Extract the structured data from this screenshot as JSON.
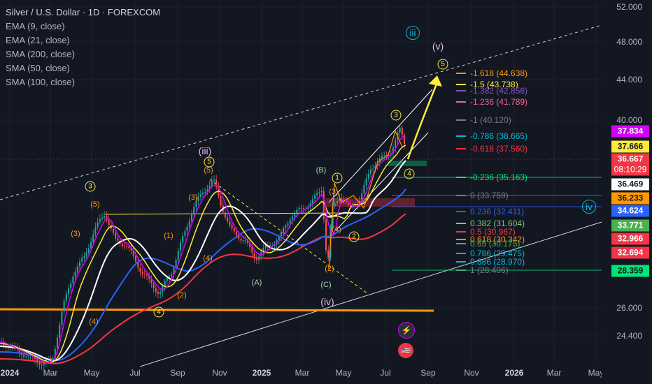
{
  "chart": {
    "title": "Silver / U.S. Dollar · 1D · FOREXCOM",
    "indicators": [
      "EMA (9, close)",
      "EMA (21, close)",
      "SMA (200, close)",
      "SMA (50, close)",
      "SMA (100, close)"
    ]
  },
  "price_axis": {
    "ticks": [
      "52.000",
      "48.000",
      "44.000",
      "40.000",
      "26.000",
      "24.400"
    ],
    "tags": [
      {
        "value": "37.834",
        "bg": "#d500f9",
        "fg": "#ffffff"
      },
      {
        "value": "37.666",
        "bg": "#ffeb3b",
        "fg": "#131722"
      },
      {
        "value": "36.667",
        "bg": "#f23645",
        "fg": "#ffffff"
      },
      {
        "value": "08:10:29",
        "bg": "#f23645",
        "fg": "#ffffff"
      },
      {
        "value": "36.469",
        "bg": "#ffffff",
        "fg": "#131722"
      },
      {
        "value": "36.233",
        "bg": "#ff9800",
        "fg": "#131722"
      },
      {
        "value": "34.624",
        "bg": "#2962ff",
        "fg": "#ffffff"
      },
      {
        "value": "33.771",
        "bg": "#4caf50",
        "fg": "#ffffff"
      },
      {
        "value": "32.966",
        "bg": "#f23645",
        "fg": "#ffffff"
      },
      {
        "value": "32.694",
        "bg": "#f23645",
        "fg": "#ffffff"
      },
      {
        "value": "28.359",
        "bg": "#00e676",
        "fg": "#131722"
      }
    ]
  },
  "time_axis": [
    {
      "label": "2024",
      "bold": true
    },
    {
      "label": "Mar",
      "bold": false
    },
    {
      "label": "May",
      "bold": false
    },
    {
      "label": "Jul",
      "bold": false
    },
    {
      "label": "Sep",
      "bold": false
    },
    {
      "label": "Nov",
      "bold": false
    },
    {
      "label": "2025",
      "bold": true
    },
    {
      "label": "Mar",
      "bold": false
    },
    {
      "label": "May",
      "bold": false
    },
    {
      "label": "Jul",
      "bold": false
    },
    {
      "label": "Sep",
      "bold": false
    },
    {
      "label": "Nov",
      "bold": false
    },
    {
      "label": "2026",
      "bold": true
    },
    {
      "label": "Mar",
      "bold": false
    },
    {
      "label": "May",
      "bold": false
    }
  ],
  "fib_levels": [
    {
      "label": "-1.618 (44.638)",
      "color": "#ff9800"
    },
    {
      "label": "-1.5 (43.738)",
      "color": "#ffeb3b"
    },
    {
      "label": "-1.382 (42.856)",
      "color": "#7e57c2"
    },
    {
      "label": "-1.236 (41.789)",
      "color": "#f06292"
    },
    {
      "label": "-1 (40.120)",
      "color": "#787b86"
    },
    {
      "label": "-0.786 (38.665)",
      "color": "#00bcd4"
    },
    {
      "label": "-0.618 (37.560)",
      "color": "#f23645"
    },
    {
      "label": "-0.236 (35.163)",
      "color": "#00e676"
    },
    {
      "label": "0 (33.759)",
      "color": "#787b86"
    },
    {
      "label": "0.236 (32.411)",
      "color": "#2962ff"
    },
    {
      "label": "0.382 (31.604)",
      "color": "#81c784"
    },
    {
      "label": "0.5 (30.967)",
      "color": "#f23645"
    },
    {
      "label": "0.618 (30.342)",
      "color": "#ff9800"
    },
    {
      "label": "0.65 (30.175)",
      "color": "#4caf50"
    },
    {
      "label": "0.786 (29.475)",
      "color": "#00bcd4"
    },
    {
      "label": "0.886 (28.970)",
      "color": "#00bcd4"
    },
    {
      "label": "1 (28.406)",
      "color": "#787b86"
    }
  ],
  "waves": [
    {
      "text": "iii",
      "color": "#00bcd4"
    },
    {
      "text": "(v)",
      "color": "#e1bee7"
    },
    {
      "text": "5",
      "color": "#ffeb3b"
    },
    {
      "text": "3",
      "color": "#ffeb3b"
    },
    {
      "text": "(iii)",
      "color": "#e1bee7"
    },
    {
      "text": "5",
      "color": "#ffeb3b"
    },
    {
      "text": "(5)",
      "color": "#ff9800"
    },
    {
      "text": "3",
      "color": "#ffeb3b"
    },
    {
      "text": "(5)",
      "color": "#ff9800"
    },
    {
      "text": "(3)",
      "color": "#ff9800"
    },
    {
      "text": "(3)",
      "color": "#ff9800"
    },
    {
      "text": "(1)",
      "color": "#ff9800"
    },
    {
      "text": "(4)",
      "color": "#ff9800"
    },
    {
      "text": "(2)",
      "color": "#ff9800"
    },
    {
      "text": "4",
      "color": "#ffeb3b"
    },
    {
      "text": "(4)",
      "color": "#ff9800"
    },
    {
      "text": "(B)",
      "color": "#a5d6a7"
    },
    {
      "text": "1",
      "color": "#ffeb3b"
    },
    {
      "text": "(3)",
      "color": "#ff9800"
    },
    {
      "text": "(4)",
      "color": "#ff9800"
    },
    {
      "text": "2",
      "color": "#ffeb3b"
    },
    {
      "text": "(A)",
      "color": "#a5d6a7"
    },
    {
      "text": "(2)",
      "color": "#ff9800"
    },
    {
      "text": "(C)",
      "color": "#a5d6a7"
    },
    {
      "text": "(iv)",
      "color": "#e1bee7"
    },
    {
      "text": "4",
      "color": "#ffeb3b"
    },
    {
      "text": "iv",
      "color": "#00bcd4"
    }
  ]
}
